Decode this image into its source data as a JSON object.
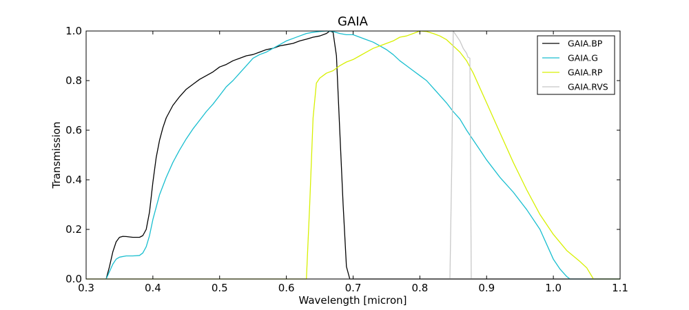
{
  "chart_data": {
    "type": "line",
    "title": "GAIA",
    "xlabel": "Wavelength [micron]",
    "ylabel": "Transmission",
    "xlim": [
      0.3,
      1.1
    ],
    "ylim": [
      0.0,
      1.0
    ],
    "xticks": [
      "0.3",
      "0.4",
      "0.5",
      "0.6",
      "0.7",
      "0.8",
      "0.9",
      "1.0",
      "1.1"
    ],
    "yticks": [
      "0.0",
      "0.2",
      "0.4",
      "0.6",
      "0.8",
      "1.0"
    ],
    "grid": false,
    "legend_position": "top-right",
    "series": [
      {
        "name": "GAIA.BP",
        "color": "#000000",
        "x": [
          0.33,
          0.335,
          0.34,
          0.345,
          0.35,
          0.355,
          0.36,
          0.37,
          0.38,
          0.385,
          0.39,
          0.395,
          0.4,
          0.405,
          0.41,
          0.415,
          0.42,
          0.43,
          0.44,
          0.45,
          0.46,
          0.47,
          0.48,
          0.49,
          0.5,
          0.51,
          0.52,
          0.53,
          0.54,
          0.55,
          0.56,
          0.57,
          0.58,
          0.59,
          0.6,
          0.61,
          0.62,
          0.63,
          0.64,
          0.65,
          0.66,
          0.665,
          0.67,
          0.675,
          0.68,
          0.685,
          0.69,
          0.695,
          1.1
        ],
        "y": [
          0.0,
          0.05,
          0.11,
          0.15,
          0.168,
          0.172,
          0.171,
          0.168,
          0.168,
          0.175,
          0.2,
          0.27,
          0.39,
          0.49,
          0.56,
          0.61,
          0.65,
          0.7,
          0.735,
          0.765,
          0.785,
          0.805,
          0.82,
          0.835,
          0.855,
          0.865,
          0.88,
          0.89,
          0.9,
          0.905,
          0.915,
          0.925,
          0.93,
          0.94,
          0.945,
          0.95,
          0.96,
          0.967,
          0.975,
          0.98,
          0.99,
          1.0,
          0.995,
          0.9,
          0.6,
          0.3,
          0.05,
          0.0,
          0.0
        ]
      },
      {
        "name": "GAIA.G",
        "color": "#17becf",
        "x": [
          0.33,
          0.335,
          0.34,
          0.345,
          0.35,
          0.36,
          0.37,
          0.38,
          0.385,
          0.39,
          0.395,
          0.4,
          0.41,
          0.42,
          0.43,
          0.44,
          0.45,
          0.46,
          0.47,
          0.48,
          0.49,
          0.5,
          0.51,
          0.52,
          0.53,
          0.54,
          0.55,
          0.56,
          0.57,
          0.58,
          0.59,
          0.6,
          0.61,
          0.62,
          0.63,
          0.64,
          0.65,
          0.66,
          0.67,
          0.68,
          0.69,
          0.7,
          0.71,
          0.72,
          0.73,
          0.74,
          0.75,
          0.76,
          0.77,
          0.78,
          0.79,
          0.8,
          0.81,
          0.82,
          0.83,
          0.84,
          0.85,
          0.86,
          0.87,
          0.88,
          0.89,
          0.9,
          0.92,
          0.94,
          0.96,
          0.98,
          1.0,
          1.01,
          1.02,
          1.025,
          1.1
        ],
        "y": [
          0.0,
          0.03,
          0.06,
          0.08,
          0.088,
          0.093,
          0.093,
          0.095,
          0.105,
          0.13,
          0.175,
          0.24,
          0.34,
          0.41,
          0.47,
          0.52,
          0.565,
          0.605,
          0.64,
          0.675,
          0.705,
          0.74,
          0.775,
          0.8,
          0.83,
          0.86,
          0.89,
          0.905,
          0.915,
          0.93,
          0.945,
          0.96,
          0.97,
          0.98,
          0.99,
          0.995,
          0.998,
          1.0,
          0.998,
          0.99,
          0.985,
          0.985,
          0.975,
          0.965,
          0.955,
          0.94,
          0.925,
          0.905,
          0.88,
          0.86,
          0.84,
          0.82,
          0.8,
          0.77,
          0.74,
          0.71,
          0.675,
          0.645,
          0.6,
          0.56,
          0.52,
          0.48,
          0.41,
          0.35,
          0.28,
          0.2,
          0.08,
          0.04,
          0.01,
          0.0,
          0.0
        ]
      },
      {
        "name": "GAIA.RP",
        "color": "#d7f000",
        "x": [
          0.3,
          0.63,
          0.635,
          0.64,
          0.645,
          0.65,
          0.655,
          0.66,
          0.67,
          0.68,
          0.69,
          0.7,
          0.71,
          0.72,
          0.73,
          0.74,
          0.75,
          0.76,
          0.77,
          0.78,
          0.79,
          0.8,
          0.81,
          0.82,
          0.83,
          0.84,
          0.85,
          0.86,
          0.87,
          0.88,
          0.89,
          0.9,
          0.92,
          0.94,
          0.96,
          0.98,
          1.0,
          1.02,
          1.04,
          1.05,
          1.06,
          1.1
        ],
        "y": [
          0.0,
          0.0,
          0.3,
          0.65,
          0.79,
          0.81,
          0.82,
          0.83,
          0.84,
          0.86,
          0.875,
          0.885,
          0.9,
          0.915,
          0.93,
          0.94,
          0.95,
          0.96,
          0.975,
          0.98,
          0.99,
          1.0,
          0.998,
          0.99,
          0.98,
          0.965,
          0.94,
          0.915,
          0.88,
          0.83,
          0.77,
          0.71,
          0.59,
          0.47,
          0.36,
          0.26,
          0.18,
          0.115,
          0.07,
          0.045,
          0.0,
          0.0
        ]
      },
      {
        "name": "GAIA.RVS",
        "color": "#c8c8c8",
        "x": [
          0.3,
          0.845,
          0.848,
          0.85,
          0.855,
          0.86,
          0.865,
          0.87,
          0.872,
          0.875,
          0.877,
          1.1
        ],
        "y": [
          0.0,
          0.0,
          0.5,
          1.0,
          0.98,
          0.96,
          0.93,
          0.91,
          0.895,
          0.89,
          0.0,
          0.0
        ]
      }
    ]
  }
}
